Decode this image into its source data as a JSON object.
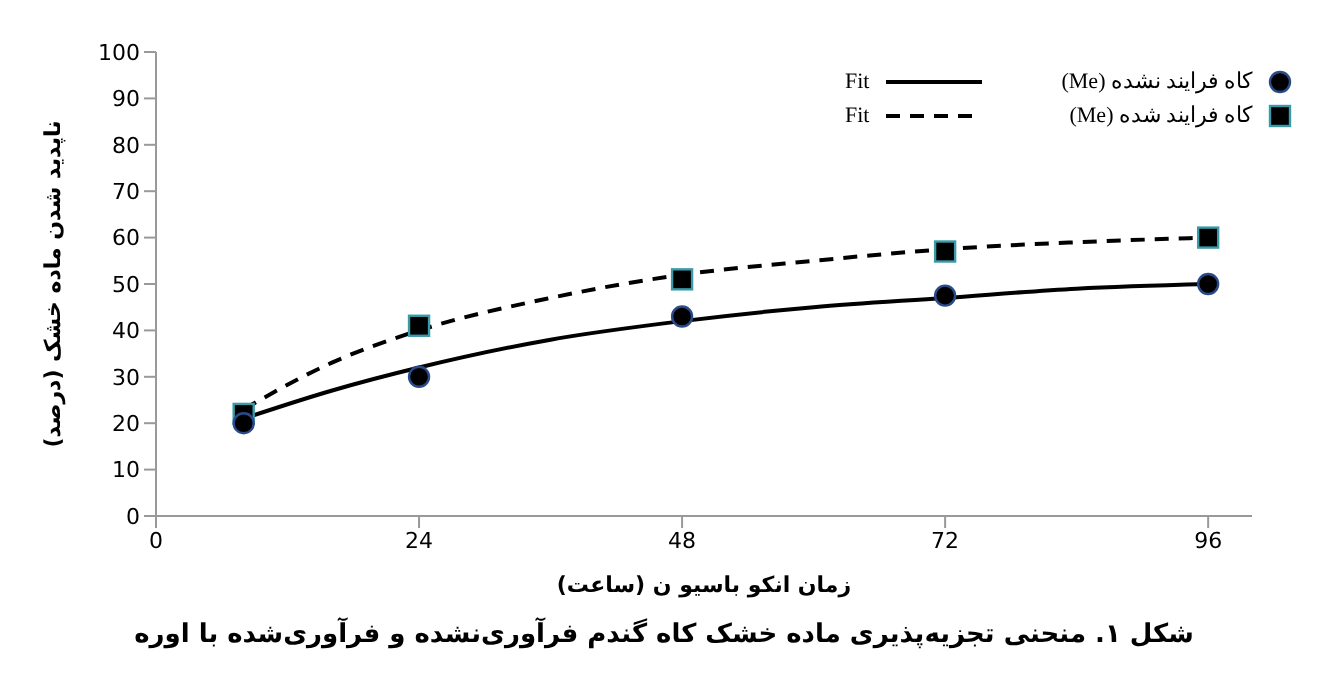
{
  "chart_data": {
    "type": "scatter",
    "title": "شکل ۱. منحنی تجزیه‌پذیری ماده خشک کاه گندم فرآوری‌نشده و فرآوری‌شده با اوره",
    "xlabel": "زمان انکو باسیو ن (ساعت)",
    "ylabel": "ناپدید شدن ماده خشک (درصد)",
    "x": [
      8,
      24,
      48,
      72,
      96
    ],
    "series": [
      {
        "name": "کاه فرایند نشده (Me)",
        "color": "#000000",
        "marker": "circle",
        "values": [
          20,
          30,
          43,
          47.5,
          50
        ]
      },
      {
        "name": "کاه فرایند شده (Me)",
        "color": "#000000",
        "marker": "square",
        "values": [
          22,
          41,
          51,
          57,
          60
        ]
      },
      {
        "name": "Fit",
        "type": "line",
        "color": "#000000",
        "line_style": "solid",
        "x": [
          8,
          16,
          24,
          36,
          48,
          60,
          72,
          84,
          96
        ],
        "values": [
          21,
          27,
          32,
          38,
          42,
          45,
          47,
          49,
          50
        ]
      },
      {
        "name": "Fit",
        "type": "line",
        "color": "#000000",
        "line_style": "dashed",
        "x": [
          8,
          16,
          24,
          36,
          48,
          60,
          72,
          84,
          96
        ],
        "values": [
          23,
          33,
          40,
          47,
          52,
          55,
          57.5,
          59,
          60
        ]
      }
    ],
    "xlim": [
      0,
      100
    ],
    "xticks": [
      0,
      24,
      48,
      72,
      96
    ],
    "ylim": [
      0,
      100
    ],
    "yticks": [
      0,
      10,
      20,
      30,
      40,
      50,
      60,
      70,
      80,
      90,
      100
    ],
    "legend": "top right",
    "marker": "none"
  }
}
